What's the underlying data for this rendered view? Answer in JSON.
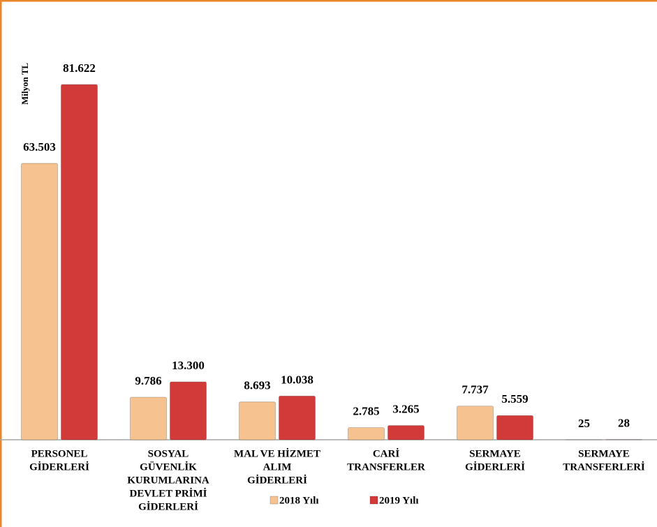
{
  "chart_data": {
    "type": "bar",
    "y_label": "Milyon TL",
    "categories": [
      [
        "PERSONEL",
        "GİDERLERİ"
      ],
      [
        "SOSYAL",
        "GÜVENLİK",
        "KURUMLARINA",
        "DEVLET PRİMİ",
        "GİDERLERİ"
      ],
      [
        "MAL VE HİZMET",
        "ALIM",
        "GİDERLERİ"
      ],
      [
        "CARİ",
        "TRANSFERLER"
      ],
      [
        "SERMAYE",
        "GİDERLERİ"
      ],
      [
        "SERMAYE",
        "TRANSFERLERİ"
      ]
    ],
    "series": [
      {
        "name": "2018 Yılı",
        "color": "#f6c28f",
        "values": [
          63503,
          9786,
          8693,
          2785,
          7737,
          25
        ],
        "value_labels": [
          "63.503",
          "9.786",
          "8.693",
          "2.785",
          "7.737",
          "25"
        ]
      },
      {
        "name": "2019 Yılı",
        "color": "#d23a3a",
        "values": [
          81622,
          13300,
          10038,
          3265,
          5559,
          28
        ],
        "value_labels": [
          "81.622",
          "13.300",
          "10.038",
          "3.265",
          "5.559",
          "28"
        ]
      }
    ],
    "ylim": [
      0,
      85000
    ]
  }
}
